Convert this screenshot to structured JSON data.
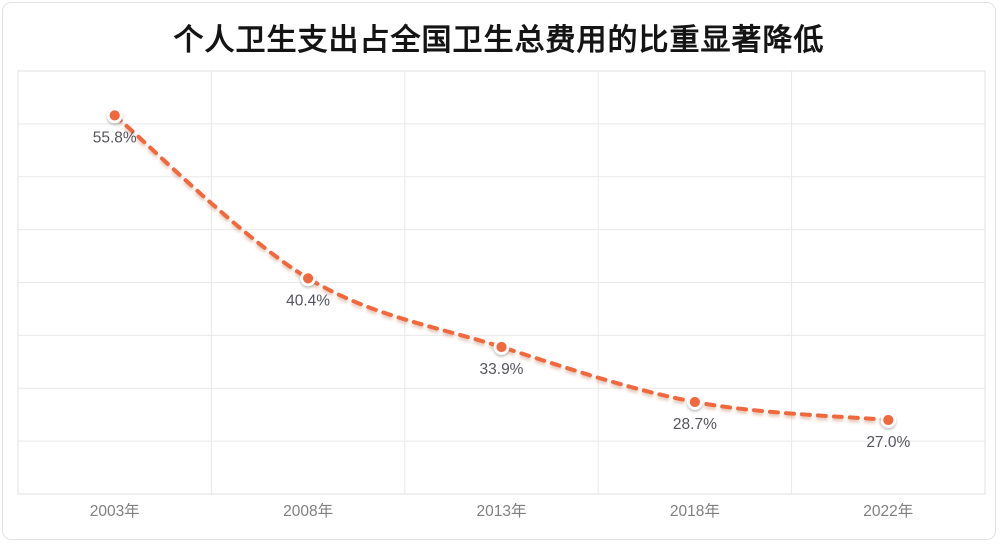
{
  "card": {
    "title": "个人卫生支出占全国卫生总费用的比重显著降低"
  },
  "chart_data": {
    "type": "line",
    "title": "个人卫生支出占全国卫生总费用的比重显著降低",
    "categories": [
      "2003年",
      "2008年",
      "2013年",
      "2018年",
      "2022年"
    ],
    "values": [
      55.8,
      40.4,
      33.9,
      28.7,
      27.0
    ],
    "data_labels": [
      "55.8%",
      "40.4%",
      "33.9%",
      "28.7%",
      "27.0%"
    ],
    "xlabel": "",
    "ylabel": "",
    "ylim": [
      20,
      60
    ],
    "y_tick_step": 5,
    "y_axis_labels_visible": false,
    "grid": true,
    "legend_position": "none",
    "line_style": "dashed",
    "line_smooth": true,
    "colors": {
      "line": "#F2673D",
      "marker_fill": "#F2673D",
      "marker_ring": "#FFFFFF",
      "grid": "#E9E9E9",
      "plot_border": "#E2E2E2",
      "data_label": "#54545C",
      "axis_label": "#7F7F7F",
      "title": "#141414",
      "card_border": "#E3E3E3",
      "background": "#FFFFFF"
    }
  }
}
